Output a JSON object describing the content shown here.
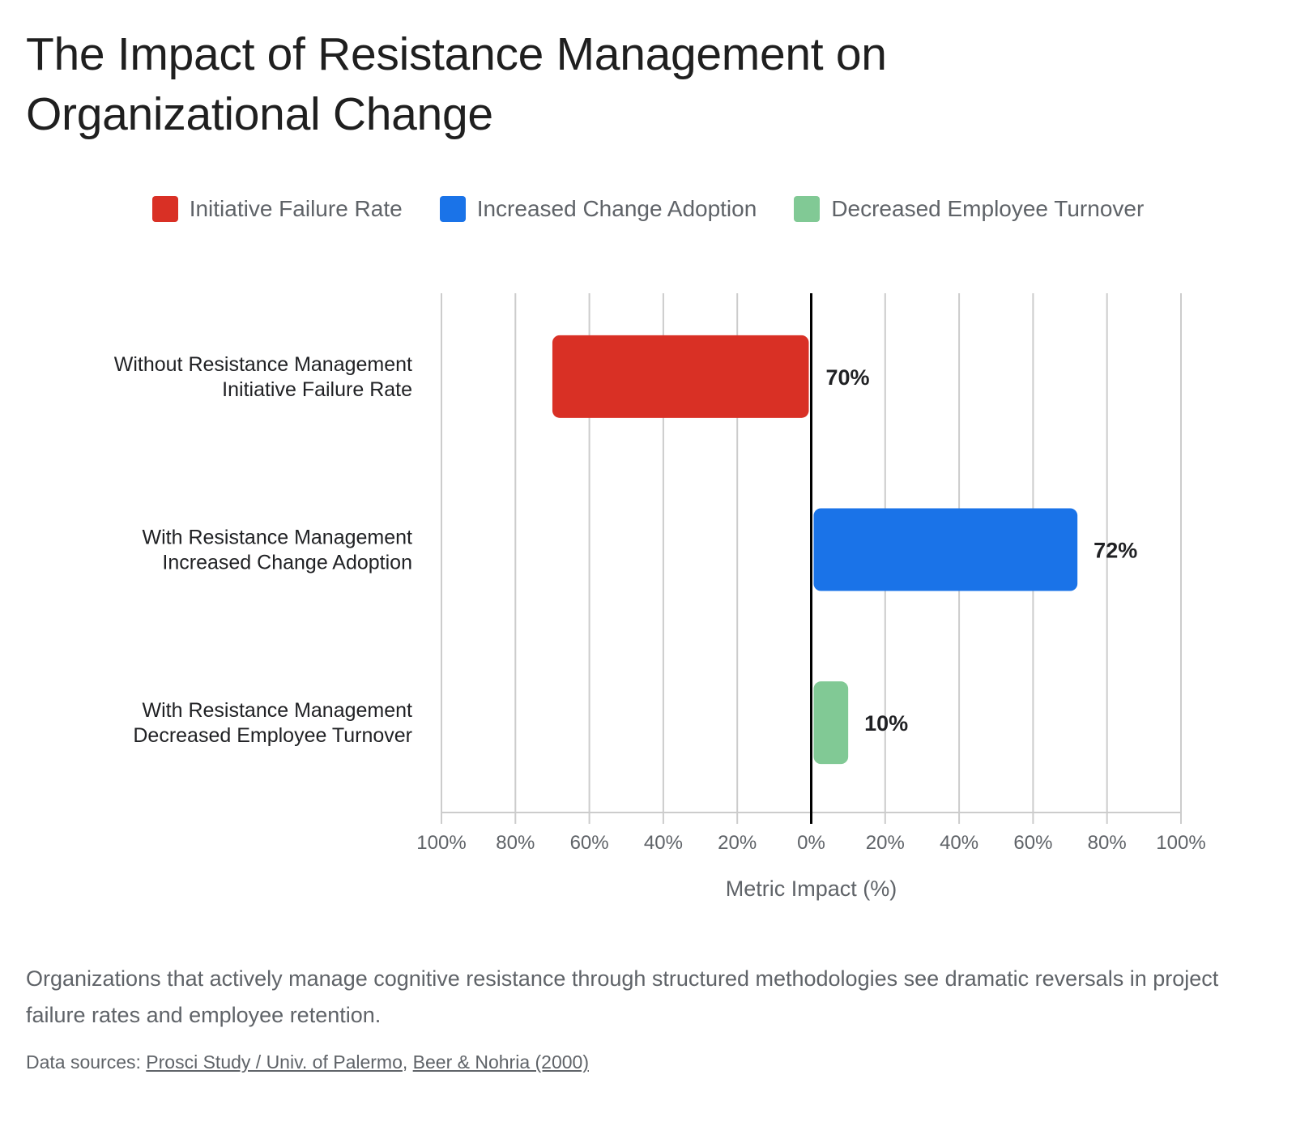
{
  "title": "The Impact of Resistance Management on Organizational Change",
  "legend": [
    {
      "label": "Initiative Failure Rate",
      "color": "#d93025"
    },
    {
      "label": "Increased Change Adoption",
      "color": "#1a73e8"
    },
    {
      "label": "Decreased Employee Turnover",
      "color": "#81c995"
    }
  ],
  "chart_data": {
    "type": "bar",
    "orientation": "horizontal",
    "categories": [
      [
        "Without Resistance Management",
        "Initiative Failure Rate"
      ],
      [
        "With Resistance Management",
        "Increased Change Adoption"
      ],
      [
        "With Resistance Management",
        "Decreased Employee Turnover"
      ]
    ],
    "values": [
      -70,
      72,
      10
    ],
    "data_labels": [
      "70%",
      "72%",
      "10%"
    ],
    "colors": [
      "#d93025",
      "#1a73e8",
      "#81c995"
    ],
    "xlabel": "Metric Impact (%)",
    "xlim": [
      -100,
      100
    ],
    "xticks": [
      -100,
      -80,
      -60,
      -40,
      -20,
      0,
      20,
      40,
      60,
      80,
      100
    ],
    "xtick_labels": [
      "100%",
      "80%",
      "60%",
      "40%",
      "20%",
      "0%",
      "20%",
      "40%",
      "60%",
      "80%",
      "100%"
    ],
    "grid": true,
    "legend_position": "top"
  },
  "caption": "Organizations that actively manage cognitive resistance through structured methodologies see dramatic reversals in project failure rates and employee retention.",
  "sources": {
    "prefix": "Data sources: ",
    "links": [
      "Prosci Study / Univ. of Palermo",
      "Beer & Nohria (2000)"
    ],
    "separator": ", "
  }
}
